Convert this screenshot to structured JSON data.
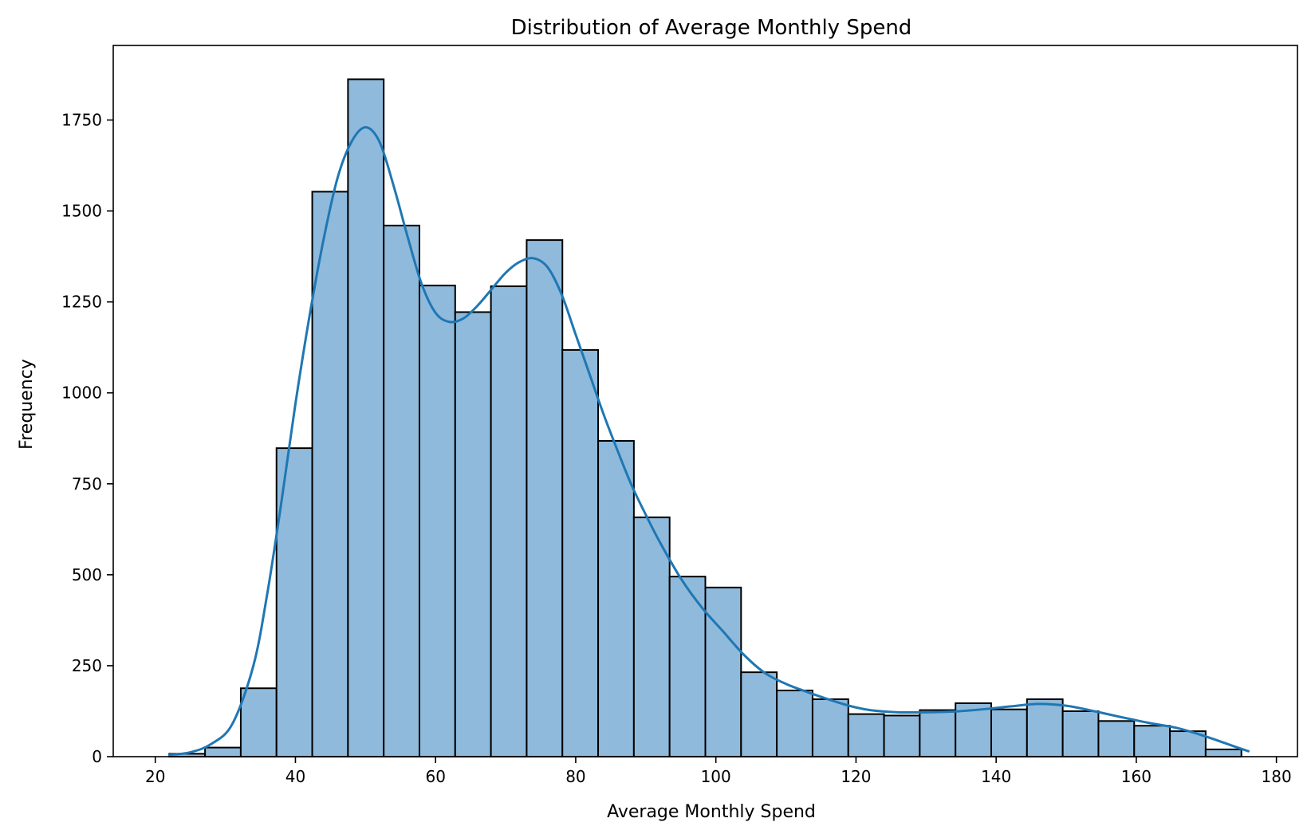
{
  "chart_data": {
    "type": "bar",
    "title": "Distribution of Average Monthly Spend",
    "xlabel": "Average Monthly Spend",
    "ylabel": "Frequency",
    "xlim": [
      14,
      183
    ],
    "ylim": [
      0,
      1955
    ],
    "bin_edges": [
      22.0,
      27.1,
      32.2,
      37.3,
      42.4,
      47.5,
      52.6,
      57.7,
      62.8,
      67.9,
      73.0,
      78.1,
      83.2,
      88.3,
      93.4,
      98.5,
      103.6,
      108.7,
      113.8,
      118.9,
      124.0,
      129.1,
      134.2,
      139.3,
      144.4,
      149.5,
      154.6,
      159.7,
      164.8,
      169.9,
      175.0
    ],
    "counts": [
      8,
      25,
      188,
      848,
      1553,
      1862,
      1460,
      1295,
      1222,
      1293,
      1420,
      1118,
      868,
      658,
      495,
      465,
      232,
      182,
      158,
      117,
      113,
      128,
      147,
      130,
      158,
      125,
      98,
      85,
      70,
      20
    ],
    "x_ticks": [
      "20",
      "40",
      "60",
      "80",
      "100",
      "120",
      "140",
      "160",
      "180"
    ],
    "y_ticks": [
      "0",
      "250",
      "500",
      "750",
      "1000",
      "1250",
      "1500",
      "1750"
    ],
    "x_tick_values": [
      20,
      40,
      60,
      80,
      100,
      120,
      140,
      160,
      180
    ],
    "y_tick_values": [
      0,
      250,
      500,
      750,
      1000,
      1250,
      1500,
      1750
    ],
    "kde": {
      "x": [
        22,
        25,
        28,
        31,
        34,
        36,
        38,
        40,
        42,
        44,
        46,
        48,
        50,
        52,
        54,
        56,
        58,
        60,
        62,
        64,
        66,
        68,
        70,
        72,
        74,
        76,
        78,
        80,
        82,
        84,
        86,
        88,
        90,
        92,
        95,
        98,
        101,
        104,
        107,
        110,
        113,
        116,
        119,
        122,
        126,
        130,
        134,
        138,
        142,
        146,
        150,
        154,
        158,
        162,
        166,
        170,
        174,
        176
      ],
      "y": [
        5,
        12,
        35,
        90,
        250,
        450,
        700,
        970,
        1210,
        1420,
        1590,
        1690,
        1730,
        1690,
        1570,
        1430,
        1300,
        1220,
        1195,
        1205,
        1240,
        1285,
        1330,
        1360,
        1370,
        1345,
        1270,
        1160,
        1050,
        940,
        840,
        745,
        665,
        590,
        490,
        410,
        345,
        280,
        230,
        200,
        178,
        158,
        140,
        128,
        122,
        122,
        124,
        130,
        138,
        145,
        140,
        125,
        108,
        92,
        78,
        55,
        28,
        15
      ]
    },
    "colors": {
      "bar_fill": "#8fbadb",
      "bar_edge": "#000000",
      "kde_line": "#1f77b4"
    },
    "grid": false,
    "legend": "none"
  }
}
